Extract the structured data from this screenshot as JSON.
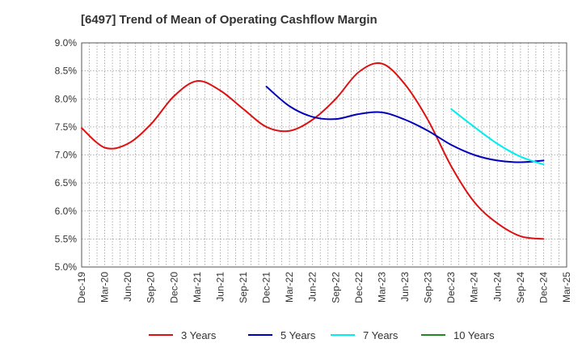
{
  "chart_data": {
    "type": "line",
    "title": "[6497]  Trend of Mean of Operating Cashflow Margin",
    "xlabel": "",
    "ylabel": "",
    "ylim": [
      5.0,
      9.0
    ],
    "y_ticks": [
      "5.0%",
      "5.5%",
      "6.0%",
      "6.5%",
      "7.0%",
      "7.5%",
      "8.0%",
      "8.5%",
      "9.0%"
    ],
    "y_tick_values": [
      5.0,
      5.5,
      6.0,
      6.5,
      7.0,
      7.5,
      8.0,
      8.5,
      9.0
    ],
    "categories": [
      "Dec-19",
      "Mar-20",
      "Jun-20",
      "Sep-20",
      "Dec-20",
      "Mar-21",
      "Jun-21",
      "Sep-21",
      "Dec-21",
      "Mar-22",
      "Jun-22",
      "Sep-22",
      "Dec-22",
      "Mar-23",
      "Jun-23",
      "Sep-23",
      "Dec-23",
      "Mar-24",
      "Jun-24",
      "Sep-24",
      "Dec-24",
      "Mar-25"
    ],
    "grid": true,
    "legend_position": "bottom",
    "series": [
      {
        "name": "3 Years",
        "color": "#dd1111",
        "values": [
          7.48,
          7.13,
          7.2,
          7.55,
          8.05,
          8.32,
          8.15,
          7.82,
          7.5,
          7.43,
          7.63,
          8.0,
          8.48,
          8.63,
          8.26,
          7.62,
          6.8,
          6.16,
          5.78,
          5.55,
          5.5,
          null
        ]
      },
      {
        "name": "5 Years",
        "color": "#0000bb",
        "values": [
          null,
          null,
          null,
          null,
          null,
          null,
          null,
          null,
          8.22,
          7.87,
          7.68,
          7.64,
          7.73,
          7.76,
          7.63,
          7.43,
          7.18,
          7.0,
          6.9,
          6.87,
          6.9,
          null
        ]
      },
      {
        "name": "7 Years",
        "color": "#00eeee",
        "values": [
          null,
          null,
          null,
          null,
          null,
          null,
          null,
          null,
          null,
          null,
          null,
          null,
          null,
          null,
          null,
          null,
          7.82,
          7.5,
          7.2,
          6.97,
          6.83,
          null
        ]
      },
      {
        "name": "10 Years",
        "color": "#228822",
        "values": [
          null,
          null,
          null,
          null,
          null,
          null,
          null,
          null,
          null,
          null,
          null,
          null,
          null,
          null,
          null,
          null,
          null,
          null,
          null,
          null,
          null,
          null
        ]
      }
    ]
  }
}
